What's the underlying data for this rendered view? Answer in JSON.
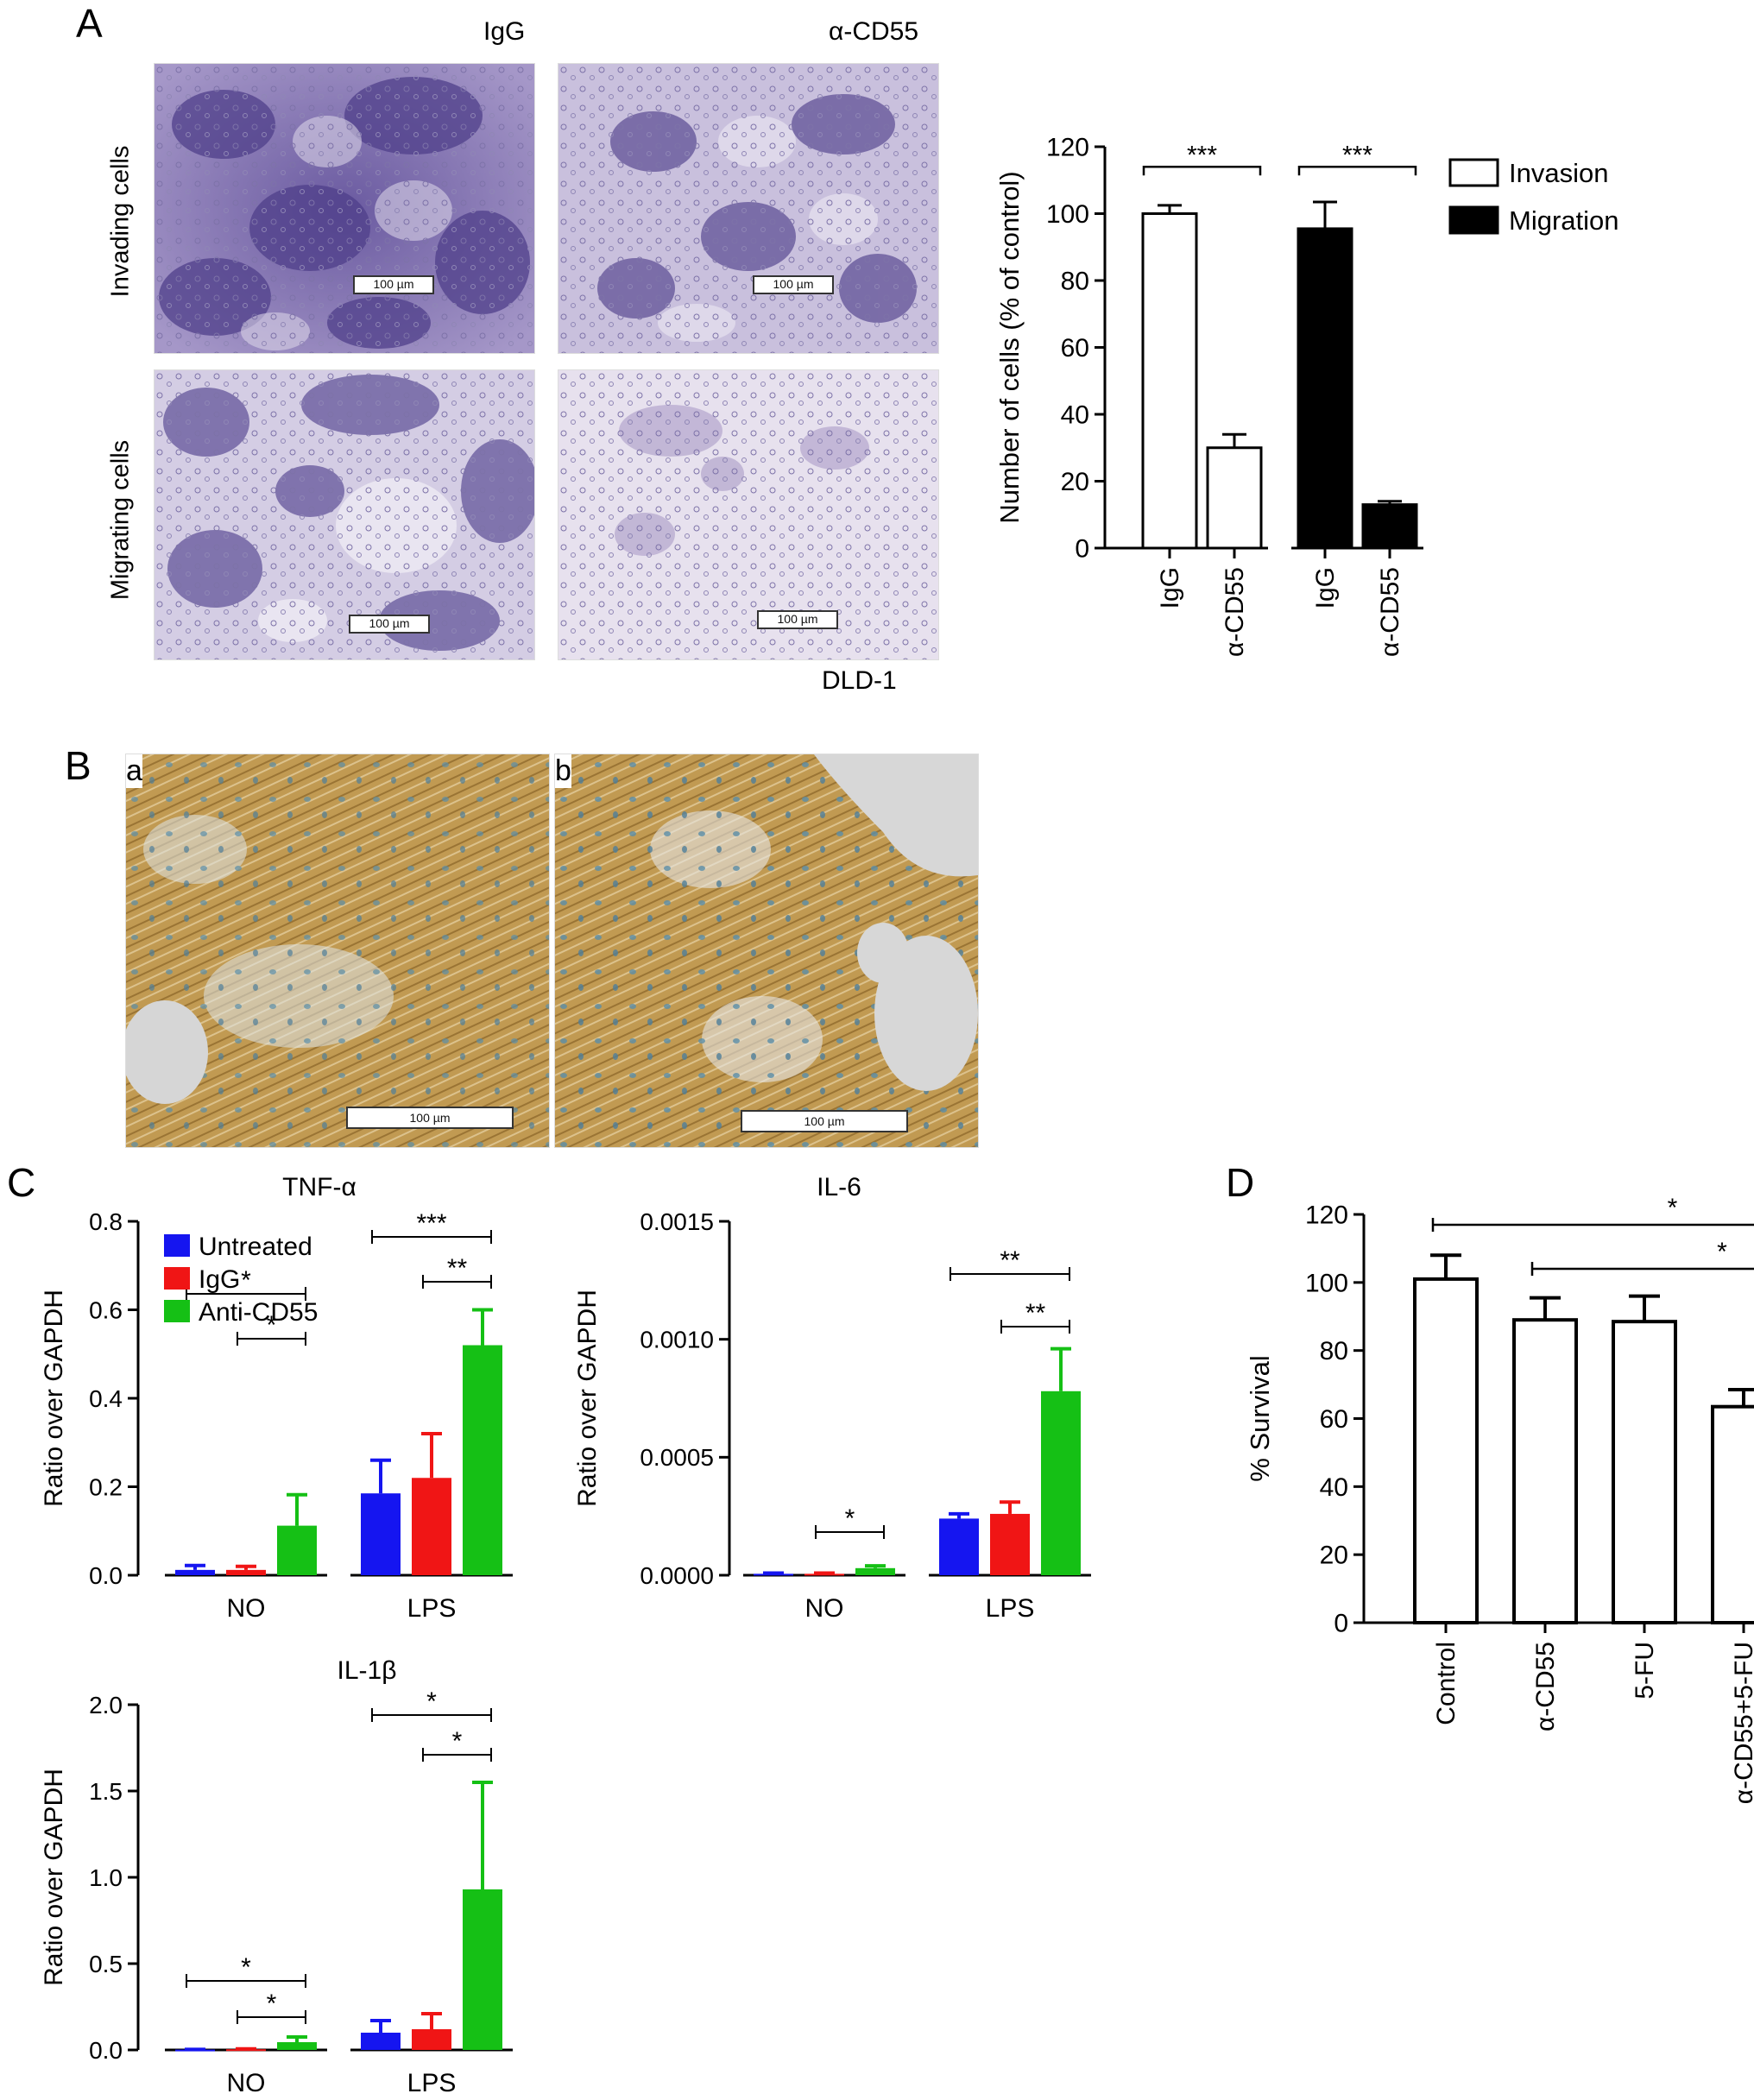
{
  "panelA": {
    "letter": "A",
    "col_labels": [
      "IgG",
      "α-CD55"
    ],
    "row_labels": [
      "Invading cells",
      "Migrating cells"
    ],
    "scale_label": "100 µm",
    "cell_line": "DLD-1"
  },
  "panelB": {
    "letter": "B",
    "sub_labels": [
      "a",
      "b"
    ],
    "scale_label": "100 µm"
  },
  "panelC": {
    "letter": "C"
  },
  "panelD": {
    "letter": "D"
  },
  "chart_data": [
    {
      "id": "A-bar",
      "type": "bar",
      "title": "",
      "ylabel": "Number of cells (% of control)",
      "ylim": [
        0,
        120
      ],
      "yticks": [
        0,
        20,
        40,
        60,
        80,
        100,
        120
      ],
      "categories": [
        "IgG",
        "α-CD55",
        "IgG",
        "α-CD55"
      ],
      "values": [
        100,
        30,
        95.5,
        13
      ],
      "errors": [
        2.5,
        4,
        8,
        1
      ],
      "fills": [
        "#ffffff",
        "#ffffff",
        "#000000",
        "#000000"
      ],
      "legend": [
        {
          "name": "Invasion",
          "color": "#ffffff"
        },
        {
          "name": "Migration",
          "color": "#000000"
        }
      ],
      "legend_position": "right",
      "significance": [
        {
          "from": 0,
          "to": 1,
          "label": "***"
        },
        {
          "from": 2,
          "to": 3,
          "label": "***"
        }
      ]
    },
    {
      "id": "C-tnf",
      "type": "bar",
      "title": "TNF-α",
      "ylabel": "Ratio over GAPDH",
      "ylim": [
        0,
        0.8
      ],
      "yticks": [
        "0.0",
        "0.2",
        "0.4",
        "0.6",
        "0.8"
      ],
      "categories": [
        "NO",
        "LPS"
      ],
      "series": [
        {
          "name": "Untreated",
          "color": "#1515f0",
          "values": [
            0.012,
            0.185
          ],
          "errors": [
            0.01,
            0.075
          ]
        },
        {
          "name": "IgG",
          "color": "#f01515",
          "values": [
            0.012,
            0.22
          ],
          "errors": [
            0.008,
            0.1
          ]
        },
        {
          "name": "Anti-CD55",
          "color": "#15c015",
          "values": [
            0.112,
            0.52
          ],
          "errors": [
            0.07,
            0.08
          ]
        }
      ],
      "legend_position": "top-left",
      "significance": [
        {
          "group": 0,
          "from": 0,
          "to": 2,
          "label": "*",
          "level": 0
        },
        {
          "group": 0,
          "from": 1,
          "to": 2,
          "label": "*",
          "level": 1
        },
        {
          "group": 1,
          "from": 0,
          "to": 2,
          "label": "***",
          "level": 0
        },
        {
          "group": 1,
          "from": 1,
          "to": 2,
          "label": "**",
          "level": 1
        }
      ]
    },
    {
      "id": "C-il6",
      "type": "bar",
      "title": "IL-6",
      "ylabel": "Ratio over GAPDH",
      "ylim": [
        0,
        0.0015
      ],
      "yticks": [
        "0.0000",
        "0.0005",
        "0.0010",
        "0.0015"
      ],
      "categories": [
        "NO",
        "LPS"
      ],
      "series": [
        {
          "name": "Untreated",
          "color": "#1515f0",
          "values": [
            6e-06,
            0.00024
          ],
          "errors": [
            3e-06,
            2e-05
          ]
        },
        {
          "name": "IgG",
          "color": "#f01515",
          "values": [
            6e-06,
            0.00026
          ],
          "errors": [
            3e-06,
            5e-05
          ]
        },
        {
          "name": "Anti-CD55",
          "color": "#15c015",
          "values": [
            3e-05,
            0.00078
          ],
          "errors": [
            1e-05,
            0.00018
          ]
        }
      ],
      "significance": [
        {
          "group": 0,
          "from": 1,
          "to": 2,
          "label": "*",
          "level": 1
        },
        {
          "group": 1,
          "from": 0,
          "to": 2,
          "label": "**",
          "level": 0
        },
        {
          "group": 1,
          "from": 1,
          "to": 2,
          "label": "**",
          "level": 1
        }
      ]
    },
    {
      "id": "C-il1b",
      "type": "bar",
      "title": "IL-1β",
      "ylabel": "Ratio over GAPDH",
      "ylim": [
        0,
        2.0
      ],
      "yticks": [
        "0.0",
        "0.5",
        "1.0",
        "1.5",
        "2.0"
      ],
      "categories": [
        "NO",
        "LPS"
      ],
      "series": [
        {
          "name": "Untreated",
          "color": "#1515f0",
          "values": [
            0.002,
            0.1
          ],
          "errors": [
            0.001,
            0.07
          ]
        },
        {
          "name": "IgG",
          "color": "#f01515",
          "values": [
            0.004,
            0.12
          ],
          "errors": [
            0.002,
            0.09
          ]
        },
        {
          "name": "Anti-CD55",
          "color": "#15c015",
          "values": [
            0.045,
            0.93
          ],
          "errors": [
            0.03,
            0.62
          ]
        }
      ],
      "significance": [
        {
          "group": 0,
          "from": 0,
          "to": 2,
          "label": "*",
          "level": 0
        },
        {
          "group": 0,
          "from": 1,
          "to": 2,
          "label": "*",
          "level": 1
        },
        {
          "group": 1,
          "from": 0,
          "to": 2,
          "label": "*",
          "level": 0
        },
        {
          "group": 1,
          "from": 1,
          "to": 2,
          "label": "*",
          "level": 1
        }
      ]
    },
    {
      "id": "D-survival",
      "type": "bar",
      "title": "",
      "ylabel": "% Survival",
      "ylim": [
        0,
        120
      ],
      "yticks": [
        0,
        20,
        40,
        60,
        80,
        100,
        120
      ],
      "categories": [
        "Control",
        "α-CD55",
        "5-FU",
        "α-CD55+5-FU"
      ],
      "values": [
        101,
        89,
        88.5,
        63.5
      ],
      "errors": [
        7,
        6.5,
        7.5,
        5
      ],
      "significance": [
        {
          "from": 0,
          "to": 3,
          "label": "*",
          "level": 0
        },
        {
          "from": 1,
          "to": 3,
          "label": "*",
          "level": 1
        }
      ]
    }
  ]
}
